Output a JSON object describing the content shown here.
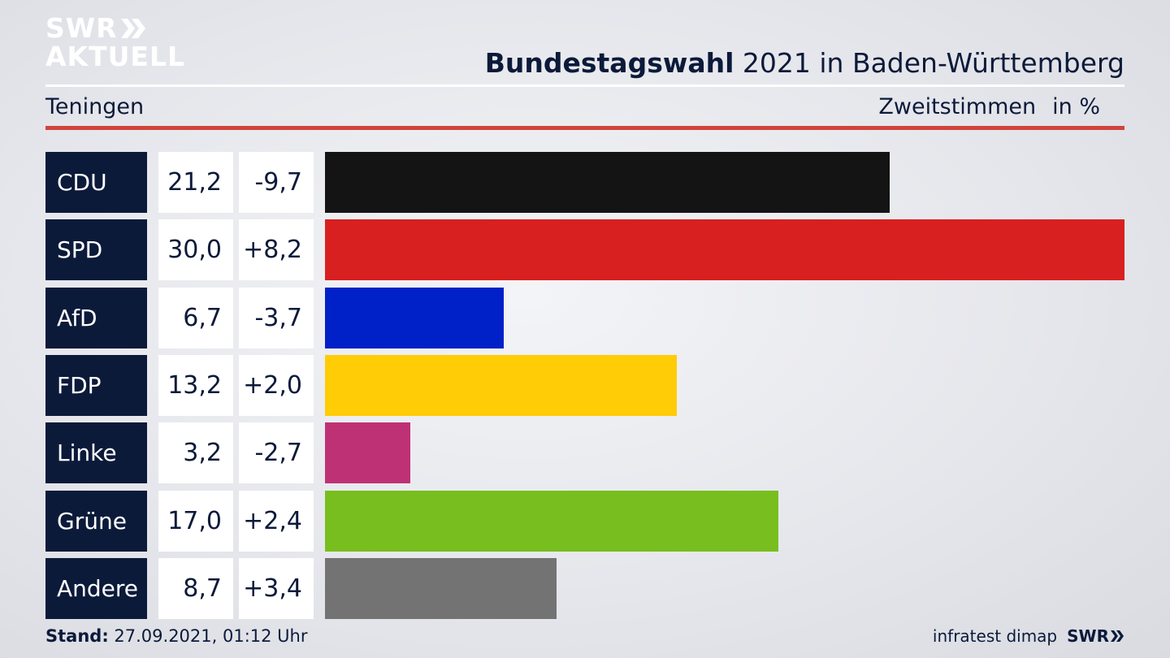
{
  "header": {
    "logo_line1": "SWR",
    "logo_line2": "AKTUELL",
    "title_bold": "Bundestagswahl",
    "title_rest": " 2021 in Baden-Württemberg",
    "region": "Teningen",
    "metric": "Zweitstimmen",
    "unit": "in %"
  },
  "footer": {
    "stand_label": "Stand:",
    "stand_value": " 27.09.2021, 01:12 Uhr",
    "source": "infratest dimap",
    "brand": "SWR"
  },
  "colors": {
    "navy": "#0c1a3a",
    "accent_red": "#d0443a"
  },
  "chart_data": {
    "type": "bar",
    "orientation": "horizontal",
    "categories": [
      "CDU",
      "SPD",
      "AfD",
      "FDP",
      "Linke",
      "Grüne",
      "Andere"
    ],
    "values": [
      21.2,
      30.0,
      6.7,
      13.2,
      3.2,
      17.0,
      8.7
    ],
    "value_labels": [
      "21,2",
      "30,0",
      "6,7",
      "13,2",
      "3,2",
      "17,0",
      "8,7"
    ],
    "diff_labels": [
      "-9,7",
      "+8,2",
      "-3,7",
      "+2,0",
      "-2,7",
      "+2,4",
      "+3,4"
    ],
    "colors": [
      "#141414",
      "#d82020",
      "#0021c8",
      "#ffcc05",
      "#bf3175",
      "#78be1e",
      "#737373"
    ],
    "xlim": [
      0,
      30.0
    ],
    "grid": false,
    "legend": "none"
  }
}
